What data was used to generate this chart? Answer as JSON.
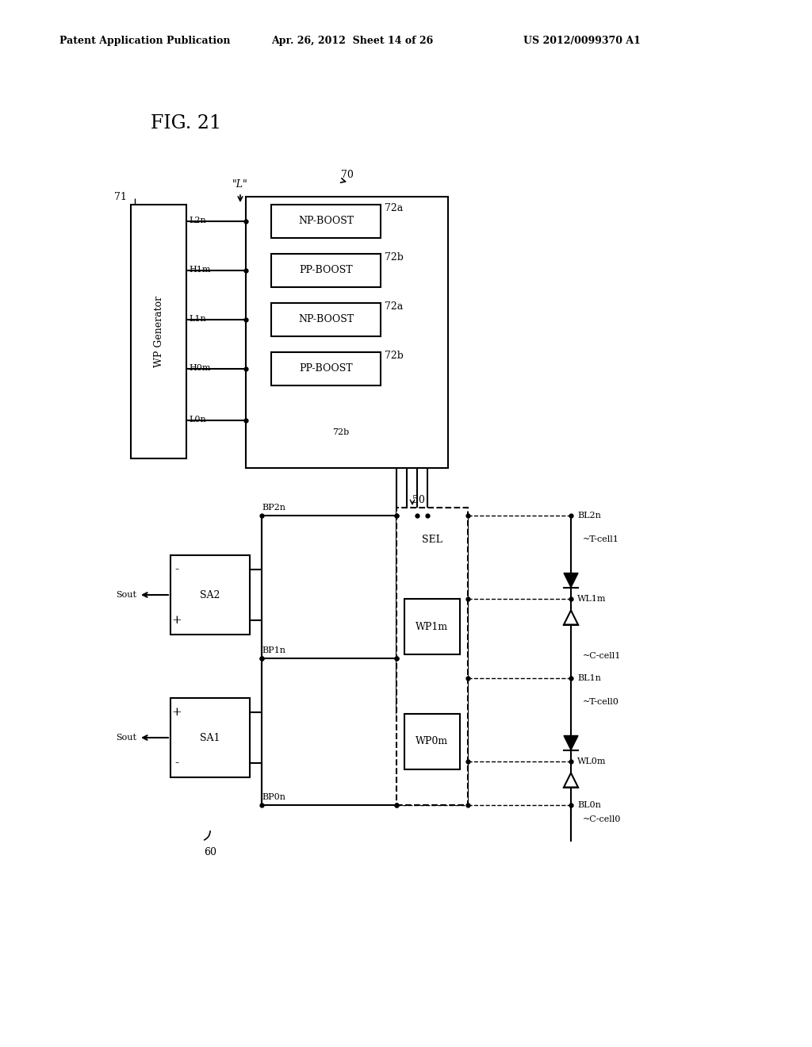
{
  "bg_color": "#ffffff",
  "header_text": "Patent Application Publication",
  "header_date": "Apr. 26, 2012  Sheet 14 of 26",
  "header_patent": "US 2012/0099370 A1",
  "fig_label": "FIG. 21"
}
